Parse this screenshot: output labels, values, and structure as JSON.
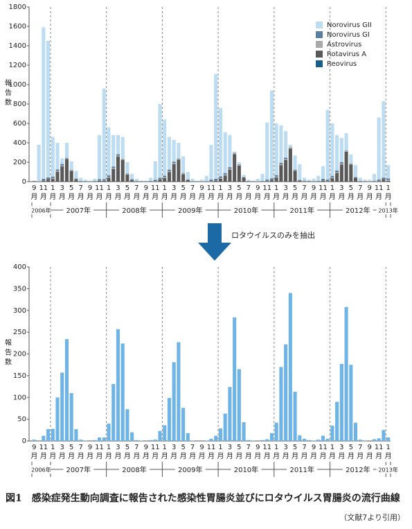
{
  "chart_data": [
    {
      "type": "bar",
      "stacked": true,
      "y_label": "報告数",
      "categories": [
        "9月",
        null,
        "11月",
        null,
        "1月",
        null,
        "3月",
        null,
        "5月",
        null,
        "7月",
        null,
        "9月",
        null,
        "11月",
        null,
        "1月",
        null,
        "3月",
        null,
        "5月",
        null,
        "7月",
        null,
        "9月",
        null,
        "11月",
        null,
        "1月",
        null,
        "3月",
        null,
        "5月",
        null,
        "7月",
        null,
        "9月",
        null,
        "11月",
        null,
        "1月",
        null,
        "3月",
        null,
        "5月",
        null,
        "7月",
        null,
        "9月",
        null,
        "11月",
        null,
        "1月",
        null,
        "3月",
        null,
        "5月",
        null,
        "7月",
        null,
        "9月",
        null,
        "11月",
        null,
        "1月",
        null,
        "3月",
        null,
        "5月",
        null,
        "7月",
        null,
        "9月",
        null,
        "11月",
        null,
        "1月"
      ],
      "year_labels": [
        "2006年",
        "2007年",
        "2008年",
        "2009年",
        "2010年",
        "2011年",
        "2012年",
        "2013年"
      ],
      "series": [
        {
          "name": "Norovirus GII",
          "color": "#bcdcf2",
          "values": [
            2,
            375,
            1561,
            1406,
            407,
            275,
            58,
            153,
            87,
            78,
            32,
            14,
            5,
            23,
            455,
            935,
            495,
            324,
            198,
            223,
            114,
            55,
            23,
            4,
            5,
            33,
            190,
            760,
            579,
            336,
            224,
            160,
            171,
            77,
            24,
            5,
            15,
            54,
            358,
            1081,
            706,
            422,
            331,
            13,
            22,
            22,
            13,
            4,
            25,
            73,
            589,
            905,
            533,
            385,
            273,
            27,
            144,
            162,
            30,
            13,
            24,
            52,
            131,
            718,
            540,
            365,
            248,
            179,
            92,
            123,
            32,
            14,
            15,
            71,
            637,
            788,
            137
          ]
        },
        {
          "name": "Norovirus GI",
          "color": "#5b7fa1",
          "values": [
            3,
            3,
            15,
            15,
            15,
            15,
            15,
            3,
            3,
            3,
            3,
            3,
            3,
            3,
            15,
            15,
            15,
            15,
            15,
            3,
            3,
            3,
            3,
            3,
            3,
            3,
            15,
            15,
            15,
            15,
            15,
            3,
            3,
            3,
            3,
            3,
            3,
            3,
            15,
            15,
            15,
            15,
            15,
            3,
            3,
            3,
            3,
            3,
            3,
            3,
            15,
            15,
            15,
            15,
            15,
            3,
            3,
            3,
            3,
            3,
            3,
            3,
            15,
            15,
            15,
            15,
            15,
            3,
            3,
            3,
            3,
            3,
            3,
            3,
            15,
            15,
            15
          ]
        },
        {
          "name": "Astrovirus",
          "color": "#a9a9a9",
          "values": [
            2,
            2,
            2,
            2,
            10,
            10,
            10,
            10,
            10,
            2,
            2,
            2,
            2,
            2,
            2,
            2,
            10,
            10,
            10,
            10,
            10,
            2,
            2,
            2,
            2,
            2,
            2,
            2,
            10,
            10,
            10,
            10,
            10,
            2,
            2,
            2,
            2,
            2,
            2,
            2,
            10,
            10,
            10,
            10,
            10,
            2,
            2,
            2,
            2,
            2,
            2,
            2,
            10,
            10,
            10,
            10,
            10,
            2,
            2,
            2,
            2,
            2,
            2,
            2,
            10,
            10,
            10,
            10,
            10,
            2,
            2,
            2,
            2,
            2,
            2,
            2,
            10
          ]
        },
        {
          "name": "Rotavirus A",
          "color": "#595959",
          "values": [
            3,
            0,
            12,
            27,
            28,
            100,
            157,
            234,
            110,
            27,
            3,
            1,
            0,
            2,
            8,
            8,
            40,
            131,
            257,
            224,
            73,
            20,
            2,
            1,
            0,
            2,
            3,
            23,
            36,
            99,
            181,
            227,
            76,
            18,
            1,
            0,
            0,
            1,
            5,
            12,
            29,
            63,
            124,
            284,
            165,
            43,
            2,
            1,
            0,
            2,
            4,
            18,
            42,
            170,
            222,
            340,
            113,
            13,
            5,
            2,
            1,
            3,
            12,
            5,
            35,
            90,
            177,
            308,
            175,
            42,
            3,
            1,
            0,
            4,
            6,
            25,
            8
          ]
        },
        {
          "name": "Reovirus",
          "color": "#1b5e8a",
          "values": [
            0,
            0,
            0,
            0,
            0,
            0,
            0,
            0,
            0,
            0,
            0,
            0,
            0,
            0,
            0,
            0,
            0,
            0,
            0,
            0,
            0,
            0,
            0,
            0,
            0,
            0,
            0,
            0,
            0,
            0,
            0,
            0,
            0,
            0,
            0,
            0,
            0,
            0,
            0,
            0,
            0,
            0,
            0,
            0,
            0,
            0,
            0,
            0,
            0,
            0,
            0,
            0,
            0,
            0,
            0,
            0,
            0,
            0,
            0,
            0,
            0,
            0,
            0,
            0,
            0,
            0,
            0,
            0,
            0,
            0,
            0,
            0,
            0,
            0,
            0,
            0,
            0
          ]
        }
      ],
      "ylim": [
        0,
        1800
      ],
      "yticks": [
        0,
        200,
        400,
        600,
        800,
        1000,
        1200,
        1400,
        1600,
        1800
      ],
      "legend": "upper right"
    },
    {
      "type": "bar",
      "y_label": "報告数",
      "categories": [
        "9月",
        null,
        "11月",
        null,
        "1月",
        null,
        "3月",
        null,
        "5月",
        null,
        "7月",
        null,
        "9月",
        null,
        "11月",
        null,
        "1月",
        null,
        "3月",
        null,
        "5月",
        null,
        "7月",
        null,
        "9月",
        null,
        "11月",
        null,
        "1月",
        null,
        "3月",
        null,
        "5月",
        null,
        "7月",
        null,
        "9月",
        null,
        "11月",
        null,
        "1月",
        null,
        "3月",
        null,
        "5月",
        null,
        "7月",
        null,
        "9月",
        null,
        "11月",
        null,
        "1月",
        null,
        "3月",
        null,
        "5月",
        null,
        "7月",
        null,
        "9月",
        null,
        "11月",
        null,
        "1月",
        null,
        "3月",
        null,
        "5月",
        null,
        "7月",
        null,
        "9月",
        null,
        "11月",
        null,
        "1月"
      ],
      "year_labels": [
        "2006年",
        "2007年",
        "2008年",
        "2009年",
        "2010年",
        "2011年",
        "2012年",
        "2013年"
      ],
      "values": [
        3,
        0,
        12,
        27,
        28,
        100,
        157,
        234,
        110,
        27,
        3,
        1,
        0,
        2,
        8,
        8,
        40,
        131,
        257,
        224,
        73,
        20,
        2,
        1,
        0,
        2,
        3,
        23,
        36,
        99,
        181,
        227,
        76,
        18,
        1,
        0,
        0,
        1,
        5,
        12,
        29,
        63,
        124,
        284,
        165,
        43,
        2,
        1,
        0,
        2,
        4,
        18,
        42,
        170,
        222,
        340,
        113,
        13,
        5,
        2,
        1,
        3,
        12,
        5,
        35,
        90,
        177,
        308,
        175,
        42,
        3,
        1,
        0,
        4,
        6,
        25,
        8
      ],
      "color": "#6fb4e6",
      "ylim": [
        0,
        400
      ],
      "yticks": [
        0,
        50,
        100,
        150,
        200,
        250,
        300,
        350,
        400
      ]
    }
  ],
  "arrow_label": "ロタウイルスのみを抽出",
  "caption": {
    "number": "図1",
    "text": "感染症発生動向調査に報告された感染性胃腸炎並びにロタウイルス胃腸炎の流行曲線",
    "source": "（文献7より引用）"
  }
}
